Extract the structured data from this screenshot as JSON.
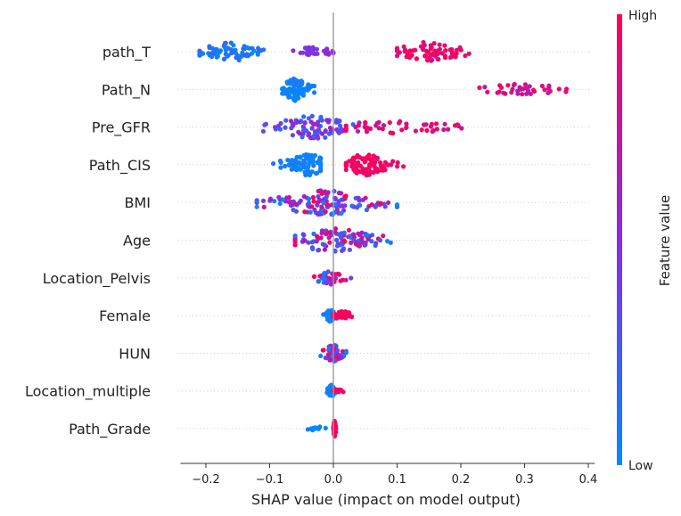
{
  "chart_data": {
    "type": "scatter",
    "subtype": "shap-beeswarm",
    "xlabel": "SHAP value (impact on model output)",
    "xlim": [
      -0.24,
      0.41
    ],
    "xticks": [
      "−0.2",
      "−0.1",
      "0.0",
      "0.1",
      "0.2",
      "0.3",
      "0.4"
    ],
    "xtick_values": [
      -0.2,
      -0.1,
      0.0,
      0.1,
      0.2,
      0.3,
      0.4
    ],
    "colorbar": {
      "title": "Feature value",
      "high_label": "High",
      "low_label": "Low",
      "low_color": "#008bfb",
      "mid_color": "#8a2be2",
      "high_color": "#ff0052"
    },
    "grid": false,
    "features": [
      {
        "name": "path_T",
        "clusters": [
          {
            "min": -0.21,
            "max": -0.09,
            "center": -0.16,
            "n": 70,
            "vmin": 0.0,
            "vmax": 0.2
          },
          {
            "min": -0.08,
            "max": 0.0,
            "center": -0.03,
            "n": 28,
            "vmin": 0.4,
            "vmax": 0.6
          },
          {
            "min": 0.1,
            "max": 0.24,
            "center": 0.15,
            "n": 75,
            "vmin": 0.8,
            "vmax": 1.0
          }
        ]
      },
      {
        "name": "Path_N",
        "clusters": [
          {
            "min": -0.08,
            "max": -0.03,
            "center": -0.06,
            "n": 90,
            "vmin": 0.0,
            "vmax": 0.1
          },
          {
            "min": 0.2,
            "max": 0.37,
            "center": 0.3,
            "n": 38,
            "vmin": 0.65,
            "vmax": 1.0
          }
        ]
      },
      {
        "name": "Pre_GFR",
        "clusters": [
          {
            "min": -0.11,
            "max": 0.05,
            "center": -0.03,
            "n": 90,
            "vmin": 0.15,
            "vmax": 0.65
          },
          {
            "min": 0.02,
            "max": 0.29,
            "center": 0.1,
            "n": 45,
            "vmin": 0.75,
            "vmax": 1.0
          }
        ]
      },
      {
        "name": "Path_CIS",
        "clusters": [
          {
            "min": -0.1,
            "max": -0.02,
            "center": -0.04,
            "n": 85,
            "vmin": 0.0,
            "vmax": 0.12
          },
          {
            "min": 0.02,
            "max": 0.11,
            "center": 0.05,
            "n": 85,
            "vmin": 0.88,
            "vmax": 1.0
          }
        ]
      },
      {
        "name": "BMI",
        "clusters": [
          {
            "min": -0.12,
            "max": 0.1,
            "center": -0.01,
            "n": 130,
            "vmin": 0.0,
            "vmax": 1.0
          }
        ]
      },
      {
        "name": "Age",
        "clusters": [
          {
            "min": -0.06,
            "max": 0.1,
            "center": 0.0,
            "n": 110,
            "vmin": 0.0,
            "vmax": 1.0
          }
        ]
      },
      {
        "name": "Location_Pelvis",
        "clusters": [
          {
            "min": -0.03,
            "max": 0.03,
            "center": -0.005,
            "n": 45,
            "vmin": 0.0,
            "vmax": 1.0
          }
        ]
      },
      {
        "name": "Female",
        "clusters": [
          {
            "min": -0.02,
            "max": 0.0,
            "center": -0.005,
            "n": 40,
            "vmin": 0.0,
            "vmax": 0.1
          },
          {
            "min": 0.0,
            "max": 0.04,
            "center": 0.015,
            "n": 30,
            "vmin": 0.9,
            "vmax": 1.0
          }
        ]
      },
      {
        "name": "HUN",
        "clusters": [
          {
            "min": -0.02,
            "max": 0.02,
            "center": 0.0,
            "n": 60,
            "vmin": 0.0,
            "vmax": 1.0
          }
        ]
      },
      {
        "name": "Location_multiple",
        "clusters": [
          {
            "min": -0.01,
            "max": 0.005,
            "center": -0.003,
            "n": 40,
            "vmin": 0.0,
            "vmax": 0.1
          },
          {
            "min": 0.0,
            "max": 0.025,
            "center": 0.01,
            "n": 10,
            "vmin": 0.9,
            "vmax": 1.0
          }
        ]
      },
      {
        "name": "Path_Grade",
        "clusters": [
          {
            "min": -0.04,
            "max": -0.01,
            "center": -0.025,
            "n": 10,
            "vmin": 0.0,
            "vmax": 0.1
          },
          {
            "min": 0.0,
            "max": 0.004,
            "center": 0.002,
            "n": 60,
            "vmin": 0.9,
            "vmax": 1.0
          }
        ]
      }
    ]
  }
}
